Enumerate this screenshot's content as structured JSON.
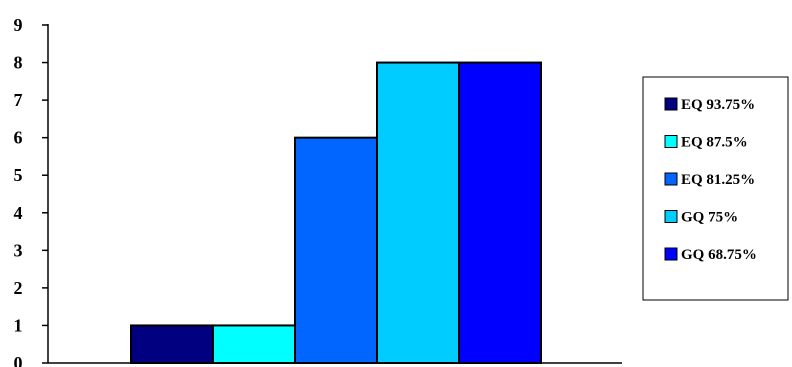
{
  "chart_data": {
    "type": "bar",
    "title": "",
    "xlabel": "",
    "ylabel": "",
    "ylim": [
      0,
      9
    ],
    "yticks": [
      0,
      1,
      2,
      3,
      4,
      5,
      6,
      7,
      8,
      9
    ],
    "grid": false,
    "legend_position": "right",
    "series": [
      {
        "name": "EQ 93.75%",
        "value": 1,
        "color": "#000080"
      },
      {
        "name": "EQ 87.5%",
        "value": 1,
        "color": "#00FFFF"
      },
      {
        "name": "EQ 81.25%",
        "value": 6,
        "color": "#0066FF"
      },
      {
        "name": "GQ 75%",
        "value": 8,
        "color": "#00CCFF"
      },
      {
        "name": "GQ 68.75%",
        "value": 8,
        "color": "#0000FF"
      }
    ]
  }
}
